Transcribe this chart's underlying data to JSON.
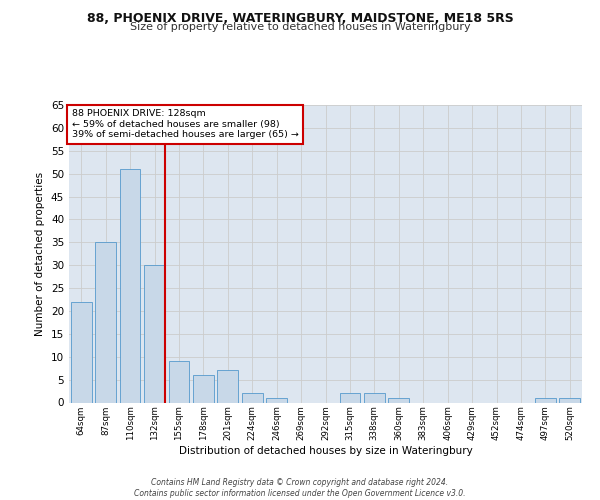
{
  "title1": "88, PHOENIX DRIVE, WATERINGBURY, MAIDSTONE, ME18 5RS",
  "title2": "Size of property relative to detached houses in Wateringbury",
  "xlabel": "Distribution of detached houses by size in Wateringbury",
  "ylabel": "Number of detached properties",
  "categories": [
    "64sqm",
    "87sqm",
    "110sqm",
    "132sqm",
    "155sqm",
    "178sqm",
    "201sqm",
    "224sqm",
    "246sqm",
    "269sqm",
    "292sqm",
    "315sqm",
    "338sqm",
    "360sqm",
    "383sqm",
    "406sqm",
    "429sqm",
    "452sqm",
    "474sqm",
    "497sqm",
    "520sqm"
  ],
  "values": [
    22,
    35,
    51,
    30,
    9,
    6,
    7,
    2,
    1,
    0,
    0,
    2,
    2,
    1,
    0,
    0,
    0,
    0,
    0,
    1,
    1
  ],
  "bar_color": "#c8d8e8",
  "bar_edge_color": "#5599cc",
  "grid_color": "#cccccc",
  "background_color": "#dde6f0",
  "vline_x": 3.42,
  "vline_color": "#cc0000",
  "annotation_text": "88 PHOENIX DRIVE: 128sqm\n← 59% of detached houses are smaller (98)\n39% of semi-detached houses are larger (65) →",
  "annotation_box_color": "#ffffff",
  "annotation_box_edge_color": "#cc0000",
  "footer_text": "Contains HM Land Registry data © Crown copyright and database right 2024.\nContains public sector information licensed under the Open Government Licence v3.0.",
  "ylim": [
    0,
    65
  ],
  "yticks": [
    0,
    5,
    10,
    15,
    20,
    25,
    30,
    35,
    40,
    45,
    50,
    55,
    60,
    65
  ]
}
